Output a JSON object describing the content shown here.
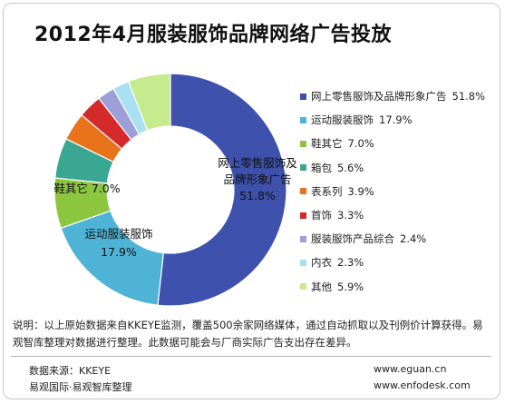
{
  "title": "2012年4月服装服饰品牌网络广告投放",
  "chart_data": {
    "type": "pie",
    "style": "donut",
    "legend_position": "right",
    "slices": [
      {
        "label": "网上零售服饰及品牌形象广告",
        "value": 51.8,
        "value_label": "51.8%",
        "color": "#3d51ad"
      },
      {
        "label": "运动服装服饰",
        "value": 17.9,
        "value_label": "17.9%",
        "color": "#4fb3d6"
      },
      {
        "label": "鞋其它",
        "value": 7.0,
        "value_label": "7.0%",
        "color": "#8cc63f"
      },
      {
        "label": "箱包",
        "value": 5.6,
        "value_label": "5.6%",
        "color": "#3aa793"
      },
      {
        "label": "表系列",
        "value": 3.9,
        "value_label": "3.9%",
        "color": "#e8731b"
      },
      {
        "label": "首饰",
        "value": 3.3,
        "value_label": "3.3%",
        "color": "#d42a2a"
      },
      {
        "label": "服装服饰产品综合",
        "value": 2.4,
        "value_label": "2.4%",
        "color": "#9d9fd9"
      },
      {
        "label": "内衣",
        "value": 2.3,
        "value_label": "2.3%",
        "color": "#a9e1f3"
      },
      {
        "label": "其他",
        "value": 5.9,
        "value_label": "5.9%",
        "color": "#c6eb8f"
      }
    ],
    "data_labels": [
      {
        "lines": [
          "网上零售服饰及",
          "品牌形象广告",
          "51.8%"
        ]
      },
      {
        "lines": [
          "运动服装服饰",
          "17.9%"
        ]
      },
      {
        "lines": [
          "鞋其它  7.0%"
        ]
      }
    ]
  },
  "note": "说明：以上原始数据来自KKEYE监测，覆盖500余家网络媒体，通过自动抓取以及刊例价计算获得。易观智库整理对数据进行整理。此数据可能会与厂商实际广告支出存在差异。",
  "footer": {
    "source": "数据来源：KKEYE",
    "org": "易观国际·易观智库整理",
    "website1": "www.eguan.cn",
    "website2": "www.enfodesk.com"
  }
}
